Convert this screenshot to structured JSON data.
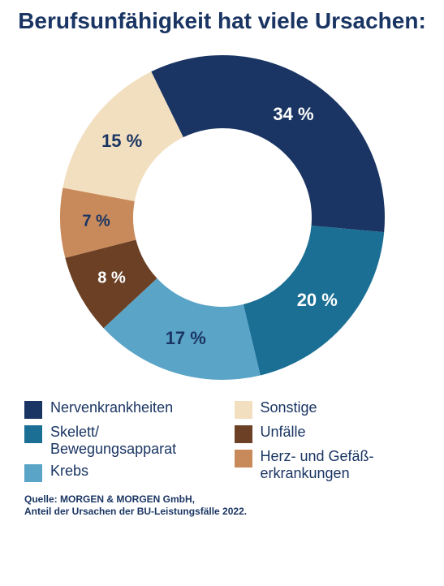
{
  "title": "Berufsunfähigkeit hat viele Ursachen:",
  "title_fontsize": 28,
  "title_color": "#1a3563",
  "chart": {
    "type": "donut",
    "size": 440,
    "outer_radius": 200,
    "inner_radius": 110,
    "background": "#ffffff",
    "start_angle_deg": -26,
    "slices": [
      {
        "key": "nerven",
        "value": 34,
        "color": "#1a3563",
        "label": "34 %",
        "label_color": "#ffffff",
        "label_fontsize": 22
      },
      {
        "key": "skelett",
        "value": 20,
        "color": "#1b6f94",
        "label": "20 %",
        "label_color": "#ffffff",
        "label_fontsize": 22
      },
      {
        "key": "krebs",
        "value": 17,
        "color": "#5aa4c7",
        "label": "17  %",
        "label_color": "#1a3563",
        "label_fontsize": 22
      },
      {
        "key": "unfaelle",
        "value": 8,
        "color": "#6b4024",
        "label": "8  %",
        "label_color": "#ffffff",
        "label_fontsize": 20
      },
      {
        "key": "herz",
        "value": 7,
        "color": "#c98a5b",
        "label": "7  %",
        "label_color": "#1a3563",
        "label_fontsize": 20
      },
      {
        "key": "sonstige",
        "value": 15,
        "color": "#f2dfbf",
        "label": "15 %",
        "label_color": "#1a3563",
        "label_fontsize": 22
      }
    ]
  },
  "legend": {
    "swatch_size": 22,
    "label_color": "#1a3563",
    "label_fontsize": 18,
    "left": [
      {
        "key": "nerven",
        "color": "#1a3563",
        "label": "Nervenkrankheiten"
      },
      {
        "key": "skelett",
        "color": "#1b6f94",
        "label": "Skelett/\nBewegungsapparat"
      },
      {
        "key": "krebs",
        "color": "#5aa4c7",
        "label": "Krebs"
      }
    ],
    "right": [
      {
        "key": "sonstige",
        "color": "#f2dfbf",
        "label": "Sonstige"
      },
      {
        "key": "unfaelle",
        "color": "#6b4024",
        "label": "Unfälle"
      },
      {
        "key": "herz",
        "color": "#c98a5b",
        "label": "Herz- und Gefäß-\nerkrankungen"
      }
    ]
  },
  "source": "Quelle: MORGEN & MORGEN GmbH,\nAnteil der Ursachen der BU-Leistungsfälle 2022."
}
